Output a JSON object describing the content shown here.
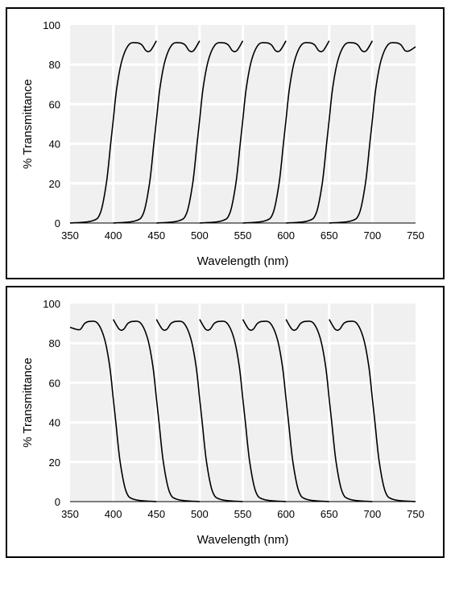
{
  "chart_data": [
    {
      "type": "line",
      "xlabel": "Wavelength (nm)",
      "ylabel": "% Transmittance",
      "xlim": [
        350,
        750
      ],
      "ylim": [
        0,
        100
      ],
      "xticks": [
        "350",
        "400",
        "450",
        "500",
        "550",
        "600",
        "650",
        "700",
        "750"
      ],
      "yticks": [
        "0",
        "20",
        "40",
        "60",
        "80",
        "100"
      ],
      "grid": true,
      "filter": "longpass",
      "series": [
        {
          "cuton_nm": 400,
          "x": [
            350,
            375,
            385,
            392,
            397,
            400,
            404,
            410,
            418,
            427,
            433,
            438,
            443,
            450
          ],
          "y": [
            0,
            1,
            5,
            20,
            40,
            52,
            68,
            82,
            90,
            91,
            90,
            87,
            87,
            92
          ]
        },
        {
          "cuton_nm": 450,
          "x": [
            400,
            425,
            435,
            442,
            447,
            450,
            454,
            460,
            468,
            477,
            483,
            488,
            493,
            500
          ],
          "y": [
            0,
            1,
            5,
            20,
            40,
            52,
            68,
            82,
            90,
            91,
            90,
            87,
            87,
            92
          ]
        },
        {
          "cuton_nm": 500,
          "x": [
            450,
            475,
            485,
            492,
            497,
            500,
            504,
            510,
            518,
            527,
            533,
            538,
            543,
            550
          ],
          "y": [
            0,
            1,
            5,
            20,
            40,
            52,
            68,
            82,
            90,
            91,
            90,
            87,
            87,
            92
          ]
        },
        {
          "cuton_nm": 550,
          "x": [
            500,
            525,
            535,
            542,
            547,
            550,
            554,
            560,
            568,
            577,
            583,
            588,
            593,
            600
          ],
          "y": [
            0,
            1,
            5,
            20,
            40,
            52,
            68,
            82,
            90,
            91,
            90,
            87,
            87,
            92
          ]
        },
        {
          "cuton_nm": 600,
          "x": [
            550,
            575,
            585,
            592,
            597,
            600,
            604,
            610,
            618,
            627,
            633,
            638,
            643,
            650
          ],
          "y": [
            0,
            1,
            5,
            20,
            40,
            52,
            68,
            82,
            90,
            91,
            90,
            87,
            87,
            92
          ]
        },
        {
          "cuton_nm": 650,
          "x": [
            600,
            625,
            635,
            642,
            647,
            650,
            654,
            660,
            668,
            677,
            683,
            688,
            693,
            700
          ],
          "y": [
            0,
            1,
            5,
            20,
            40,
            52,
            68,
            82,
            90,
            91,
            90,
            87,
            87,
            92
          ]
        },
        {
          "cuton_nm": 700,
          "x": [
            650,
            675,
            685,
            692,
            697,
            700,
            704,
            710,
            718,
            727,
            733,
            738,
            743,
            750
          ],
          "y": [
            0,
            1,
            5,
            20,
            40,
            52,
            68,
            82,
            90,
            91,
            90,
            87,
            87,
            89
          ]
        }
      ]
    },
    {
      "type": "line",
      "xlabel": "Wavelength (nm)",
      "ylabel": "% Transmittance",
      "xlim": [
        350,
        750
      ],
      "ylim": [
        0,
        100
      ],
      "xticks": [
        "350",
        "400",
        "450",
        "500",
        "550",
        "600",
        "650",
        "700",
        "750"
      ],
      "yticks": [
        "0",
        "20",
        "40",
        "60",
        "80",
        "100"
      ],
      "grid": true,
      "filter": "shortpass",
      "series": [
        {
          "cutoff_nm": 400,
          "x": [
            350,
            357,
            362,
            367,
            373,
            382,
            390,
            396,
            400,
            403,
            408,
            415,
            425,
            450
          ],
          "y": [
            88,
            87,
            87,
            90,
            91,
            90,
            82,
            68,
            52,
            40,
            20,
            5,
            1,
            0
          ]
        },
        {
          "cutoff_nm": 450,
          "x": [
            400,
            407,
            412,
            417,
            423,
            432,
            440,
            446,
            450,
            453,
            458,
            465,
            475,
            500
          ],
          "y": [
            92,
            87,
            87,
            90,
            91,
            90,
            82,
            68,
            52,
            40,
            20,
            5,
            1,
            0
          ]
        },
        {
          "cutoff_nm": 500,
          "x": [
            450,
            457,
            462,
            467,
            473,
            482,
            490,
            496,
            500,
            503,
            508,
            515,
            525,
            550
          ],
          "y": [
            92,
            87,
            87,
            90,
            91,
            90,
            82,
            68,
            52,
            40,
            20,
            5,
            1,
            0
          ]
        },
        {
          "cutoff_nm": 550,
          "x": [
            500,
            507,
            512,
            517,
            523,
            532,
            540,
            546,
            550,
            553,
            558,
            565,
            575,
            600
          ],
          "y": [
            92,
            87,
            87,
            90,
            91,
            90,
            82,
            68,
            52,
            40,
            20,
            5,
            1,
            0
          ]
        },
        {
          "cutoff_nm": 600,
          "x": [
            550,
            557,
            562,
            567,
            573,
            582,
            590,
            596,
            600,
            603,
            608,
            615,
            625,
            650
          ],
          "y": [
            92,
            87,
            87,
            90,
            91,
            90,
            82,
            68,
            52,
            40,
            20,
            5,
            1,
            0
          ]
        },
        {
          "cutoff_nm": 650,
          "x": [
            600,
            607,
            612,
            617,
            623,
            632,
            640,
            646,
            650,
            653,
            658,
            665,
            675,
            700
          ],
          "y": [
            92,
            87,
            87,
            90,
            91,
            90,
            82,
            68,
            52,
            40,
            20,
            5,
            1,
            0
          ]
        },
        {
          "cutoff_nm": 700,
          "x": [
            650,
            657,
            662,
            667,
            673,
            682,
            690,
            696,
            700,
            703,
            708,
            715,
            725,
            750
          ],
          "y": [
            92,
            87,
            87,
            90,
            91,
            90,
            82,
            68,
            52,
            40,
            20,
            5,
            1,
            0
          ]
        }
      ]
    }
  ]
}
